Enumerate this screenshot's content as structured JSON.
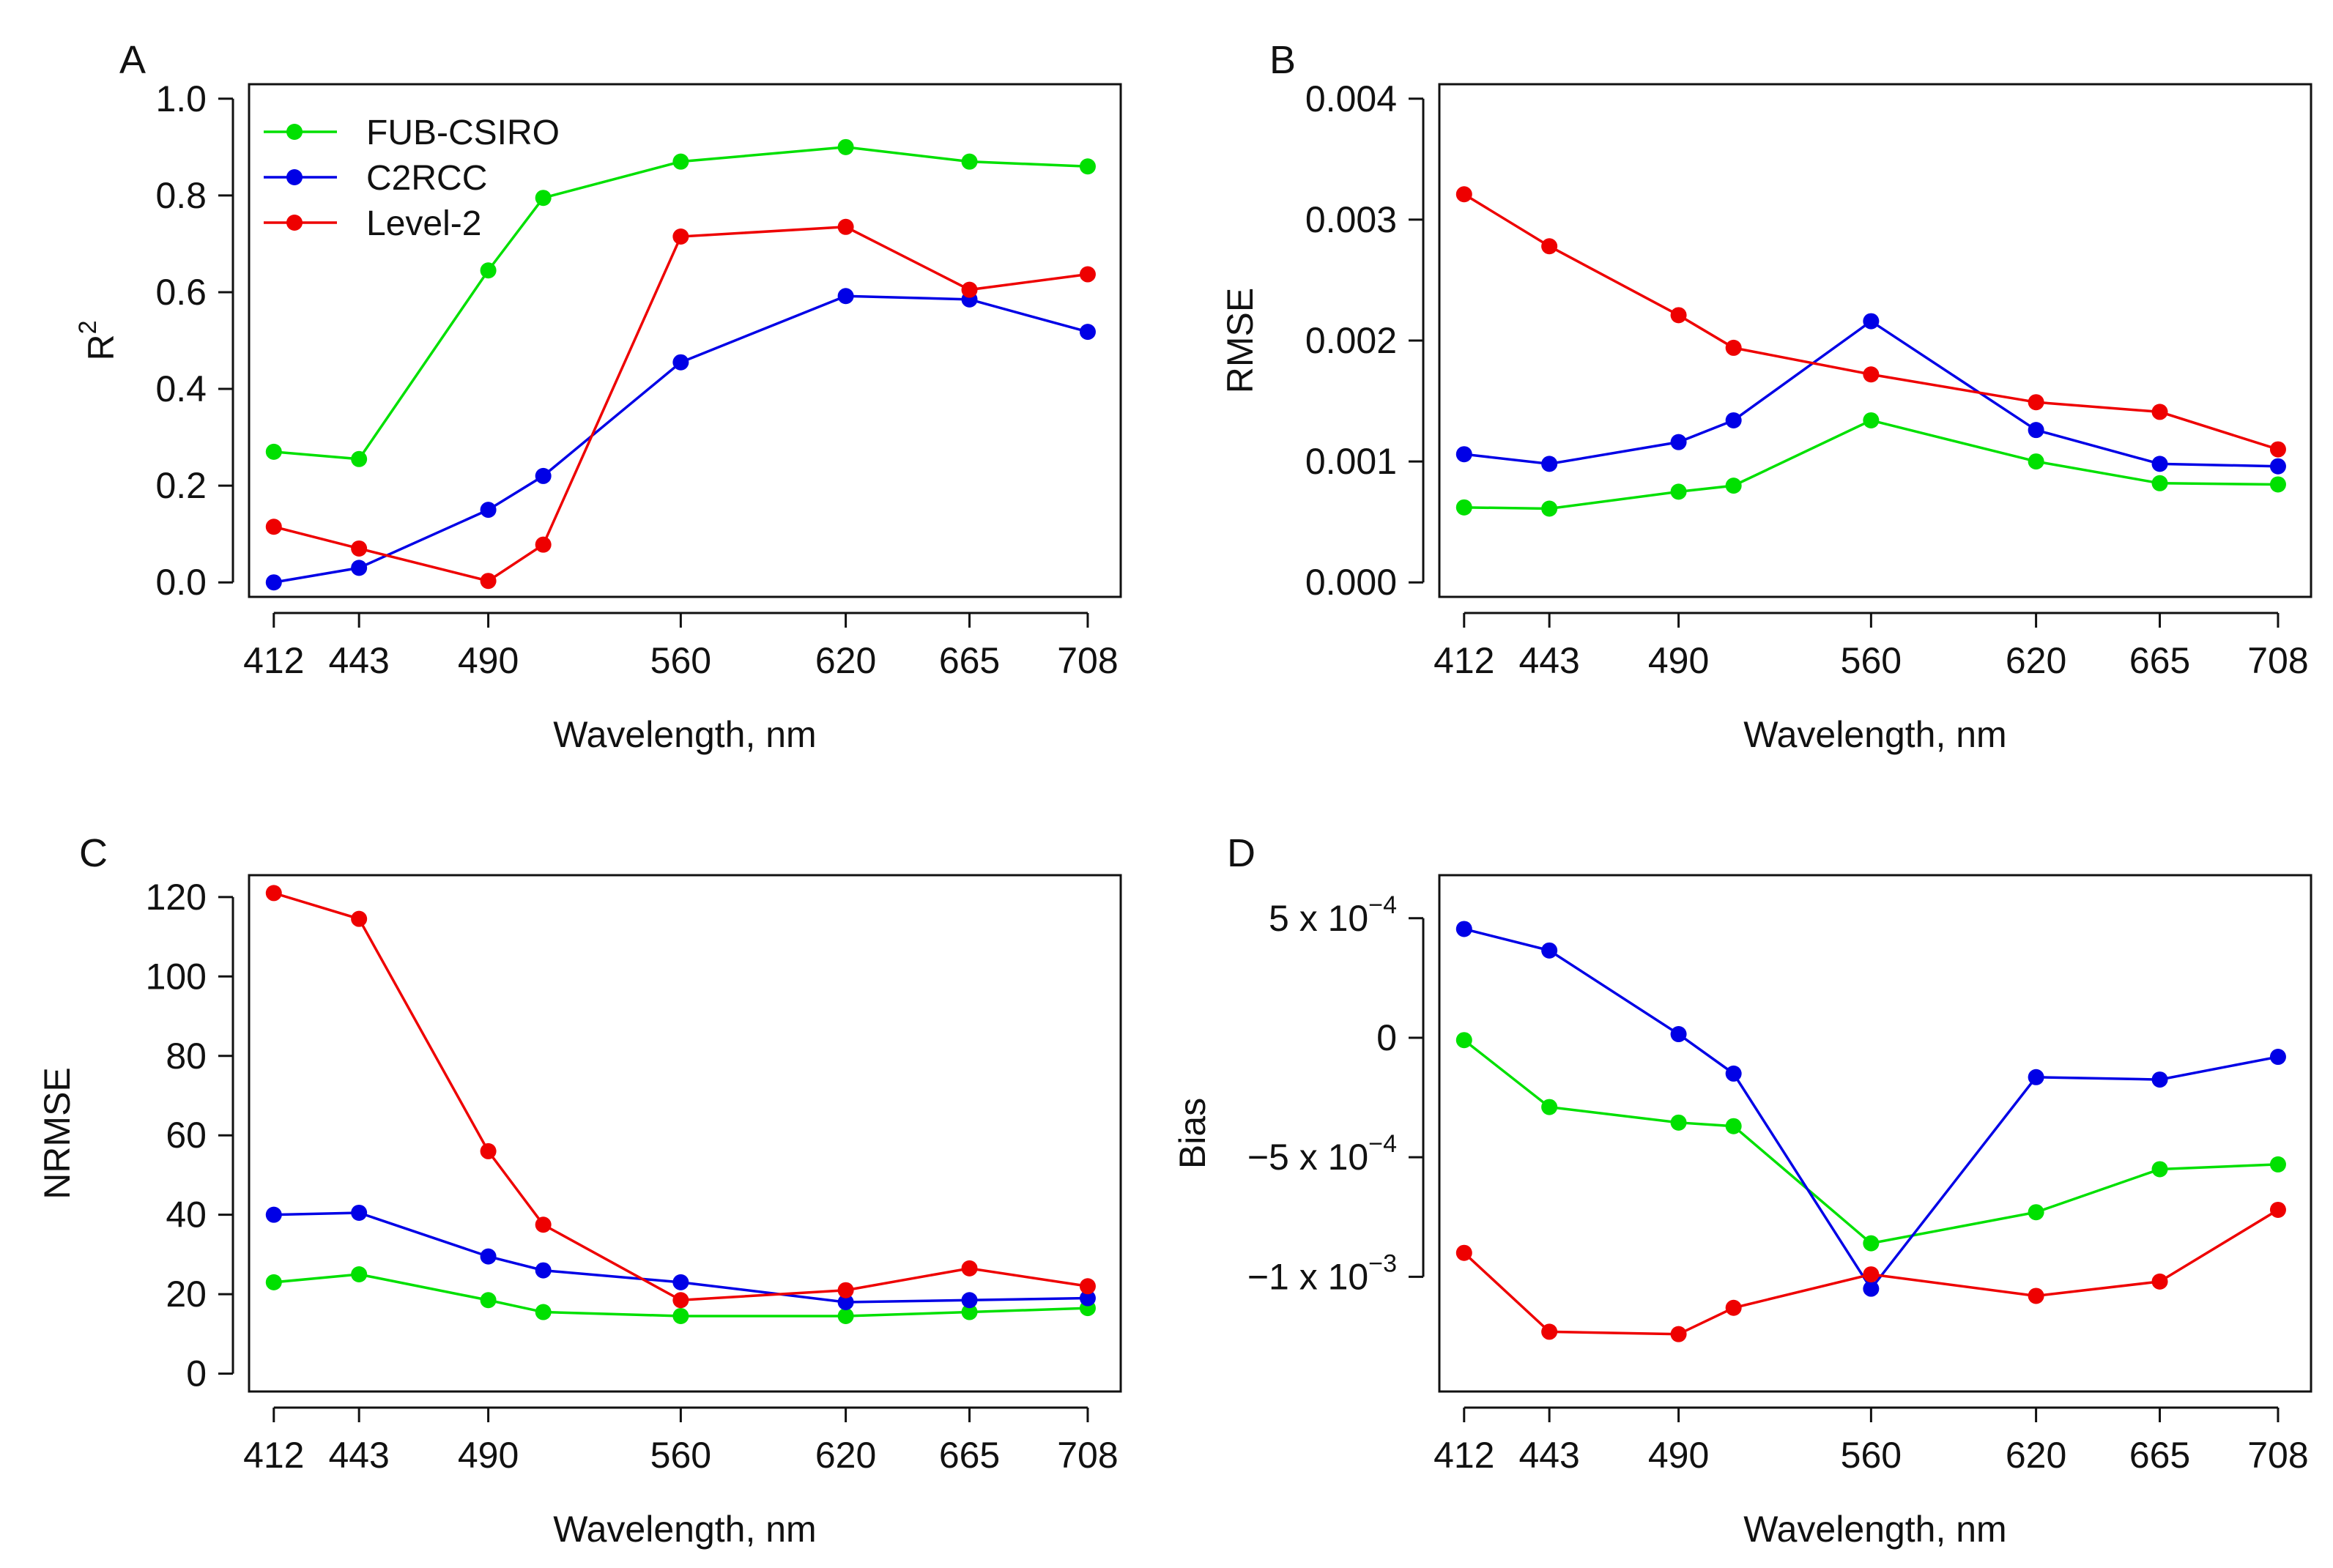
{
  "colors": {
    "FUB-CSIRO": "#00e000",
    "C2RCC": "#0000e6",
    "Level-2": "#ee0000"
  },
  "legend": {
    "entries": [
      "FUB-CSIRO",
      "C2RCC",
      "Level-2"
    ]
  },
  "chart_data": [
    {
      "id": "A",
      "type": "line",
      "panel_label": "A",
      "xlabel": "Wavelength, nm",
      "ylabel_base": "R",
      "ylabel_sup": "2",
      "x": [
        412,
        443,
        490,
        510,
        560,
        620,
        665,
        708
      ],
      "xticks": [
        412,
        443,
        490,
        560,
        620,
        665,
        708
      ],
      "xtick_labels": [
        "412",
        "443",
        "490",
        "560",
        "620",
        "665",
        "708"
      ],
      "xlim": [
        403,
        720
      ],
      "ylim": [
        -0.03,
        1.03
      ],
      "yticks": [
        0.0,
        0.2,
        0.4,
        0.6,
        0.8,
        1.0
      ],
      "ytick_labels": [
        "0.0",
        "0.2",
        "0.4",
        "0.6",
        "0.8",
        "1.0"
      ],
      "legend_position": "top-left",
      "series": [
        {
          "name": "FUB-CSIRO",
          "values": [
            0.27,
            0.255,
            0.645,
            0.795,
            0.87,
            0.9,
            0.87,
            0.86
          ]
        },
        {
          "name": "C2RCC",
          "values": [
            0.0,
            0.03,
            0.15,
            0.22,
            0.455,
            0.592,
            0.585,
            0.518
          ]
        },
        {
          "name": "Level-2",
          "values": [
            0.115,
            0.07,
            0.003,
            0.078,
            0.715,
            0.735,
            0.605,
            0.637
          ]
        }
      ]
    },
    {
      "id": "B",
      "type": "line",
      "panel_label": "B",
      "xlabel": "Wavelength, nm",
      "ylabel_base": "RMSE",
      "ylabel_sup": "",
      "x": [
        412,
        443,
        490,
        510,
        560,
        620,
        665,
        708
      ],
      "xticks": [
        412,
        443,
        490,
        560,
        620,
        665,
        708
      ],
      "xtick_labels": [
        "412",
        "443",
        "490",
        "560",
        "620",
        "665",
        "708"
      ],
      "xlim": [
        403,
        720
      ],
      "ylim": [
        -0.00012,
        0.00412
      ],
      "yticks": [
        0.0,
        0.001,
        0.002,
        0.003,
        0.004
      ],
      "ytick_labels": [
        "0.000",
        "0.001",
        "0.002",
        "0.003",
        "0.004"
      ],
      "legend_position": "none",
      "series": [
        {
          "name": "FUB-CSIRO",
          "values": [
            0.00062,
            0.00061,
            0.00075,
            0.0008,
            0.00134,
            0.001,
            0.00082,
            0.00081
          ]
        },
        {
          "name": "C2RCC",
          "values": [
            0.00106,
            0.00098,
            0.00116,
            0.00134,
            0.00216,
            0.00126,
            0.00098,
            0.00096
          ]
        },
        {
          "name": "Level-2",
          "values": [
            0.00321,
            0.00278,
            0.00221,
            0.00194,
            0.00172,
            0.00149,
            0.00141,
            0.0011
          ]
        }
      ]
    },
    {
      "id": "C",
      "type": "line",
      "panel_label": "C",
      "xlabel": "Wavelength, nm",
      "ylabel_base": "NRMSE",
      "ylabel_sup": "",
      "x": [
        412,
        443,
        490,
        510,
        560,
        620,
        665,
        708
      ],
      "xticks": [
        412,
        443,
        490,
        560,
        620,
        665,
        708
      ],
      "xtick_labels": [
        "412",
        "443",
        "490",
        "560",
        "620",
        "665",
        "708"
      ],
      "xlim": [
        403,
        720
      ],
      "ylim": [
        -4.5,
        125.5
      ],
      "yticks": [
        0,
        20,
        40,
        60,
        80,
        100,
        120
      ],
      "ytick_labels": [
        "0",
        "20",
        "40",
        "60",
        "80",
        "100",
        "120"
      ],
      "legend_position": "none",
      "series": [
        {
          "name": "FUB-CSIRO",
          "values": [
            23,
            25,
            18.5,
            15.5,
            14.5,
            14.5,
            15.5,
            16.5
          ]
        },
        {
          "name": "C2RCC",
          "values": [
            40,
            40.5,
            29.5,
            26,
            23,
            18,
            18.5,
            19
          ]
        },
        {
          "name": "Level-2",
          "values": [
            121,
            114.5,
            56,
            37.5,
            18.5,
            21,
            26.5,
            22
          ]
        }
      ]
    },
    {
      "id": "D",
      "type": "line",
      "panel_label": "D",
      "xlabel": "Wavelength, nm",
      "ylabel_base": "Bias",
      "ylabel_sup": "",
      "x": [
        412,
        443,
        490,
        510,
        560,
        620,
        665,
        708
      ],
      "xticks": [
        412,
        443,
        490,
        560,
        620,
        665,
        708
      ],
      "xtick_labels": [
        "412",
        "443",
        "490",
        "560",
        "620",
        "665",
        "708"
      ],
      "xlim": [
        403,
        720
      ],
      "ylim": [
        -0.00148,
        0.00068
      ],
      "yticks": [
        -0.001,
        -0.0005,
        0.0,
        0.0005
      ],
      "ytick_labels": [
        {
          "base": "−1 x 10",
          "sup": "−3"
        },
        {
          "base": "−5 x 10",
          "sup": "−4"
        },
        {
          "base": "0",
          "sup": ""
        },
        {
          "base": "5 x 10",
          "sup": "−4"
        }
      ],
      "legend_position": "none",
      "series": [
        {
          "name": "FUB-CSIRO",
          "values": [
            -1e-05,
            -0.00029,
            -0.000355,
            -0.00037,
            -0.00086,
            -0.00073,
            -0.00055,
            -0.00053
          ]
        },
        {
          "name": "C2RCC",
          "values": [
            0.000455,
            0.000365,
            1.5e-05,
            -0.00015,
            -0.00105,
            -0.000165,
            -0.000175,
            -8e-05
          ]
        },
        {
          "name": "Level-2",
          "values": [
            -0.0009,
            -0.00123,
            -0.00124,
            -0.00113,
            -0.00099,
            -0.00108,
            -0.00102,
            -0.00072
          ]
        }
      ]
    }
  ]
}
